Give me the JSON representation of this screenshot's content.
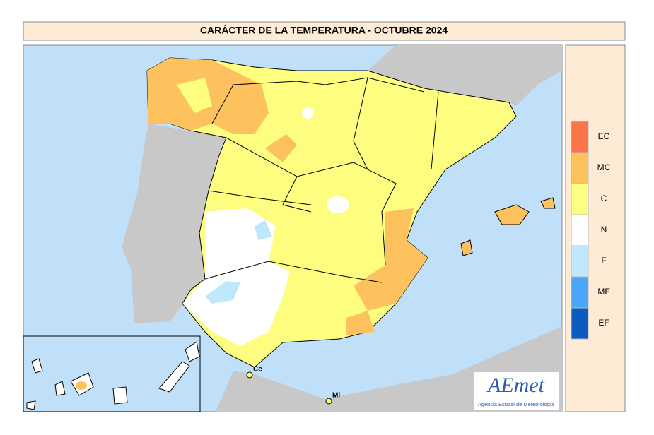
{
  "title": "CARÁCTER DE LA TEMPERATURA - OCTUBRE 2024",
  "legend": [
    {
      "label": "EC",
      "color": "#fd744b"
    },
    {
      "label": "MC",
      "color": "#fdc25e"
    },
    {
      "label": "C",
      "color": "#fdfd80"
    },
    {
      "label": "N",
      "color": "#ffffff"
    },
    {
      "label": "F",
      "color": "#bfe8fd"
    },
    {
      "label": "MF",
      "color": "#4ca6f7"
    },
    {
      "label": "EF",
      "color": "#0a5cc0"
    }
  ],
  "cities": [
    {
      "label": "Ce"
    },
    {
      "label": "Ml"
    }
  ],
  "logo": {
    "name": "AEmet",
    "subtitle": "Agencia Estatal de Meteorología"
  }
}
